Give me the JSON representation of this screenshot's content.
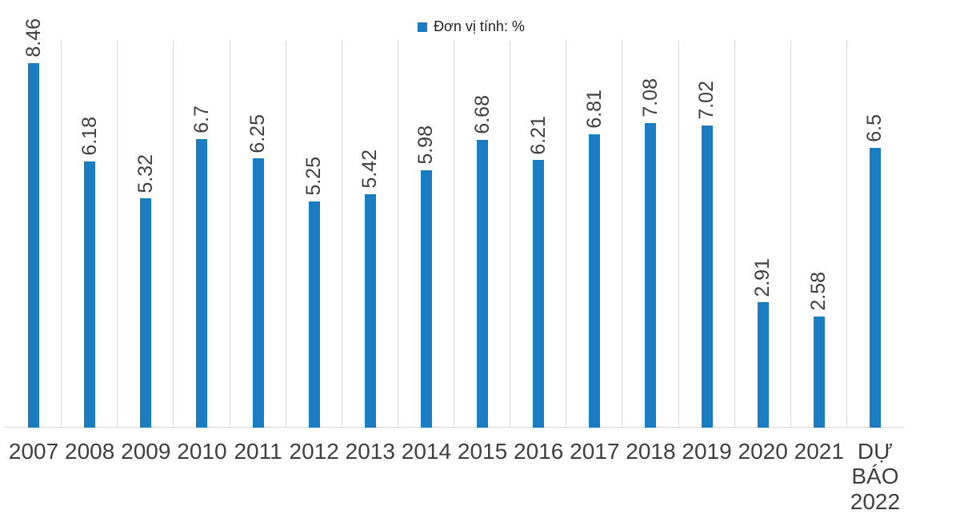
{
  "chart_data": {
    "type": "bar",
    "legend": "Đơn vị tính: %",
    "legend_position": "top-center",
    "unit": "%",
    "categories": [
      "2007",
      "2008",
      "2009",
      "2010",
      "2011",
      "2012",
      "2013",
      "2014",
      "2015",
      "2016",
      "2017",
      "2018",
      "2019",
      "2020",
      "2021",
      "DỰ BÁO\n2022"
    ],
    "values": [
      8.46,
      6.18,
      5.32,
      6.7,
      6.25,
      5.25,
      5.42,
      5.98,
      6.68,
      6.21,
      6.81,
      7.08,
      7.02,
      2.91,
      2.58,
      6.5
    ],
    "ylim": [
      0,
      9
    ],
    "grid": "vertical-category-boundaries",
    "value_labels": "rotated-90-above-bars",
    "bar_color": "#1B7DC1",
    "gridline_color": "#D9D9D9",
    "axis_line_color": "#D9D9D9",
    "label_text_color": "#404040",
    "legend_text_color": "#1f1f1f",
    "background_color": "#FFFFFF"
  }
}
